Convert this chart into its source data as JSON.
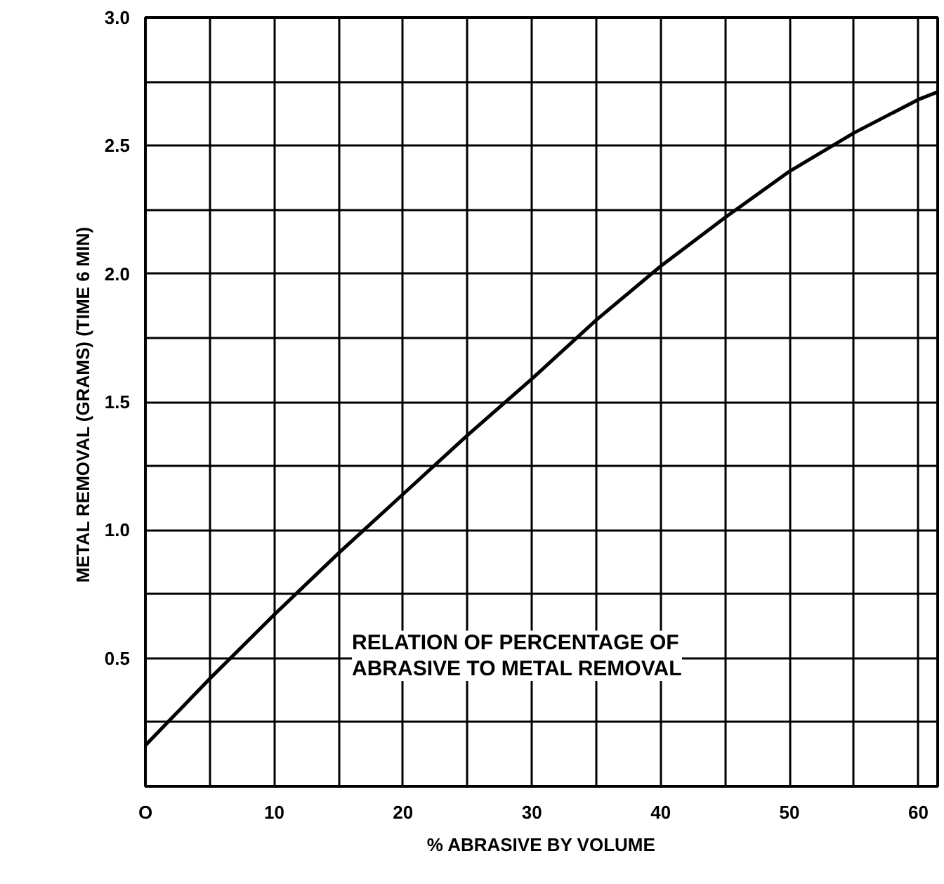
{
  "chart_data": {
    "type": "line",
    "xlabel": "% ABRASIVE BY VOLUME",
    "ylabel": "METAL REMOVAL (GRAMS)  (TIME 6 MIN)",
    "x": [
      0,
      5,
      10,
      15,
      20,
      25,
      30,
      35,
      40,
      45,
      50,
      55,
      60,
      61.5
    ],
    "series": [
      {
        "color": "#000000",
        "values": [
          0.16,
          0.42,
          0.67,
          0.91,
          1.14,
          1.37,
          1.59,
          1.82,
          2.03,
          2.22,
          2.4,
          2.55,
          2.68,
          2.71
        ]
      }
    ],
    "xlim": [
      0,
      61.5
    ],
    "ylim": [
      0,
      3.0
    ],
    "xticks": [
      {
        "value": 0,
        "label": "O"
      },
      {
        "value": 5,
        "label": null
      },
      10,
      {
        "value": 15,
        "label": null
      },
      20,
      {
        "value": 25,
        "label": null
      },
      30,
      {
        "value": 35,
        "label": null
      },
      40,
      {
        "value": 45,
        "label": null
      },
      50,
      {
        "value": 55,
        "label": null
      },
      60
    ],
    "yticks": [
      {
        "value": 0,
        "label": null
      },
      {
        "value": 0.25,
        "label": null
      },
      {
        "value": 0.5,
        "label": "0.5"
      },
      {
        "value": 0.75,
        "label": null
      },
      {
        "value": 1.0,
        "label": "1.0"
      },
      {
        "value": 1.25,
        "label": null
      },
      {
        "value": 1.5,
        "label": "1.5"
      },
      {
        "value": 1.75,
        "label": null
      },
      {
        "value": 2.0,
        "label": "2.0"
      },
      {
        "value": 2.25,
        "label": null
      },
      {
        "value": 2.5,
        "label": "2.5"
      },
      {
        "value": 2.75,
        "label": null
      },
      {
        "value": 3.0,
        "label": "3.0"
      }
    ],
    "grid": true,
    "marker": "none",
    "line_style": "solid",
    "annotations": [
      "RELATION OF PERCENTAGE OF\nABRASIVE TO METAL REMOVAL"
    ]
  }
}
